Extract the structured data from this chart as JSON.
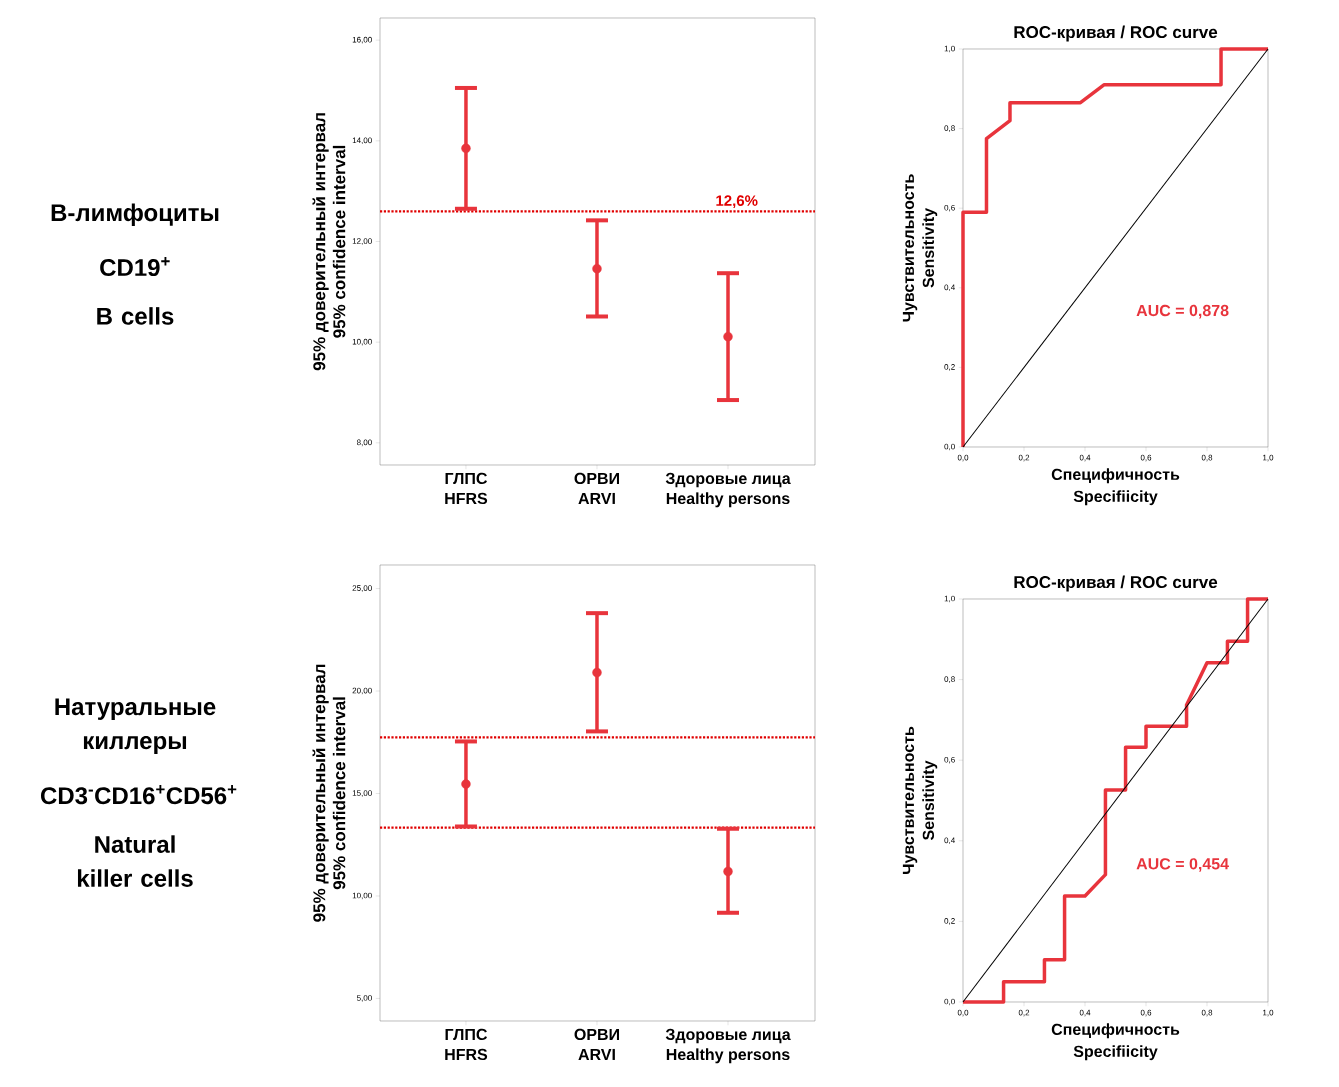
{
  "chart_data": [
    {
      "type": "other",
      "annotations": [
        "В-лимфоциты",
        "CD19$^{+}$",
        "B cells"
      ]
    },
    {
      "type": "scatter",
      "categories": [
        "ГЛПС\nHFRS",
        "ОРВИ\nARVI",
        "Здоровые лица\nHealthy persons"
      ],
      "values": [
        13.85,
        11.46,
        10.11
      ],
      "errors": [
        [
          12.65,
          15.05
        ],
        [
          10.51,
          12.42
        ],
        [
          8.85,
          11.37
        ]
      ],
      "color": "#e8343c",
      "marker": "circle",
      "ylabel": "95% доверительный интервал\n95% confidence interval",
      "ylim": [
        7.56,
        16.44
      ],
      "yticks": [
        {
          "value": 8,
          "label": "8,00"
        },
        {
          "value": 10,
          "label": "10,00"
        },
        {
          "value": 12,
          "label": "12,00"
        },
        {
          "value": 14,
          "label": "14,00"
        },
        {
          "value": 16,
          "label": "16,00"
        }
      ],
      "ref_lines": [
        {
          "axis": "y",
          "value": 12.6,
          "label": "12,6%",
          "color": "#e00000",
          "line_style": "dotted"
        }
      ]
    },
    {
      "type": "line",
      "title": "ROC-кривая / ROC curve",
      "xlabel": "Специфичность\nSpecifiicity",
      "ylabel": "Чувствительность\nSensitivity",
      "xlim": [
        0,
        1
      ],
      "ylim": [
        0,
        1
      ],
      "xticks": [
        {
          "value": 0,
          "label": "0,0"
        },
        {
          "value": 0.2,
          "label": "0,2"
        },
        {
          "value": 0.4,
          "label": "0,4"
        },
        {
          "value": 0.6,
          "label": "0,6"
        },
        {
          "value": 0.8,
          "label": "0,8"
        },
        {
          "value": 1,
          "label": "1,0"
        }
      ],
      "yticks": [
        {
          "value": 0,
          "label": "0,0"
        },
        {
          "value": 0.2,
          "label": "0,2"
        },
        {
          "value": 0.4,
          "label": "0,4"
        },
        {
          "value": 0.6,
          "label": "0,6"
        },
        {
          "value": 0.8,
          "label": "0,8"
        },
        {
          "value": 1,
          "label": "1,0"
        }
      ],
      "marker": "none",
      "series": [
        {
          "color": "#e8343c",
          "x": [
            0,
            0,
            0.077,
            0.077,
            0.154,
            0.154,
            0.385,
            0.462,
            0.846,
            0.846,
            1
          ],
          "values": [
            0,
            0.59,
            0.59,
            0.775,
            0.82,
            0.865,
            0.865,
            0.91,
            0.91,
            1,
            1
          ]
        },
        {
          "color": "#000000",
          "x": [
            0,
            1
          ],
          "values": [
            0,
            1
          ]
        }
      ],
      "annotations": [
        "AUC = 0,878"
      ]
    },
    {
      "type": "other",
      "annotations": [
        "Натуральные киллеры",
        "CD3$^{-}$CD16$^{+}$CD56$^{+}$",
        "Natural killer cells"
      ]
    },
    {
      "type": "scatter",
      "categories": [
        "ГЛПС\nHFRS",
        "ОРВИ\nARVI",
        "Здоровые лица\nHealthy persons"
      ],
      "values": [
        15.46,
        20.9,
        11.2
      ],
      "errors": [
        [
          13.39,
          17.54
        ],
        [
          18.03,
          23.8
        ],
        [
          9.18,
          13.28
        ]
      ],
      "color": "#e8343c",
      "marker": "circle",
      "ylabel": "95% доверительный интервал\n95% confidence interval",
      "ylim": [
        3.9,
        26.15
      ],
      "yticks": [
        {
          "value": 5,
          "label": "5,00"
        },
        {
          "value": 10,
          "label": "10,00"
        },
        {
          "value": 15,
          "label": "15,00"
        },
        {
          "value": 20,
          "label": "20,00"
        },
        {
          "value": 25,
          "label": "25,00"
        }
      ],
      "ref_lines": [
        {
          "axis": "y",
          "value": 17.74,
          "color": "#e00000",
          "line_style": "dotted"
        },
        {
          "axis": "y",
          "value": 13.33,
          "color": "#e00000",
          "line_style": "dotted"
        }
      ]
    },
    {
      "type": "line",
      "title": "ROC-кривая / ROC curve",
      "xlabel": "Специфичность\nSpecifiicity",
      "ylabel": "Чувствительность\nSensitivity",
      "xlim": [
        0,
        1
      ],
      "ylim": [
        0,
        1
      ],
      "xticks": [
        {
          "value": 0,
          "label": "0,0"
        },
        {
          "value": 0.2,
          "label": "0,2"
        },
        {
          "value": 0.4,
          "label": "0,4"
        },
        {
          "value": 0.6,
          "label": "0,6"
        },
        {
          "value": 0.8,
          "label": "0,8"
        },
        {
          "value": 1,
          "label": "1,0"
        }
      ],
      "yticks": [
        {
          "value": 0,
          "label": "0,0"
        },
        {
          "value": 0.2,
          "label": "0,2"
        },
        {
          "value": 0.4,
          "label": "0,4"
        },
        {
          "value": 0.6,
          "label": "0,6"
        },
        {
          "value": 0.8,
          "label": "0,8"
        },
        {
          "value": 1,
          "label": "1,0"
        }
      ],
      "marker": "none",
      "series": [
        {
          "color": "#e8343c",
          "x": [
            0,
            0.133,
            0.133,
            0.267,
            0.267,
            0.333,
            0.333,
            0.4,
            0.467,
            0.467,
            0.533,
            0.533,
            0.6,
            0.6,
            0.733,
            0.733,
            0.8,
            0.867,
            0.867,
            0.933,
            0.933,
            1
          ],
          "values": [
            0,
            0,
            0.05,
            0.05,
            0.105,
            0.105,
            0.263,
            0.263,
            0.316,
            0.526,
            0.526,
            0.632,
            0.632,
            0.684,
            0.684,
            0.737,
            0.842,
            0.842,
            0.895,
            0.895,
            1,
            1
          ]
        },
        {
          "color": "#000000",
          "x": [
            0,
            1
          ],
          "values": [
            0,
            1
          ]
        }
      ],
      "annotations": [
        "AUC = 0,454"
      ]
    }
  ]
}
